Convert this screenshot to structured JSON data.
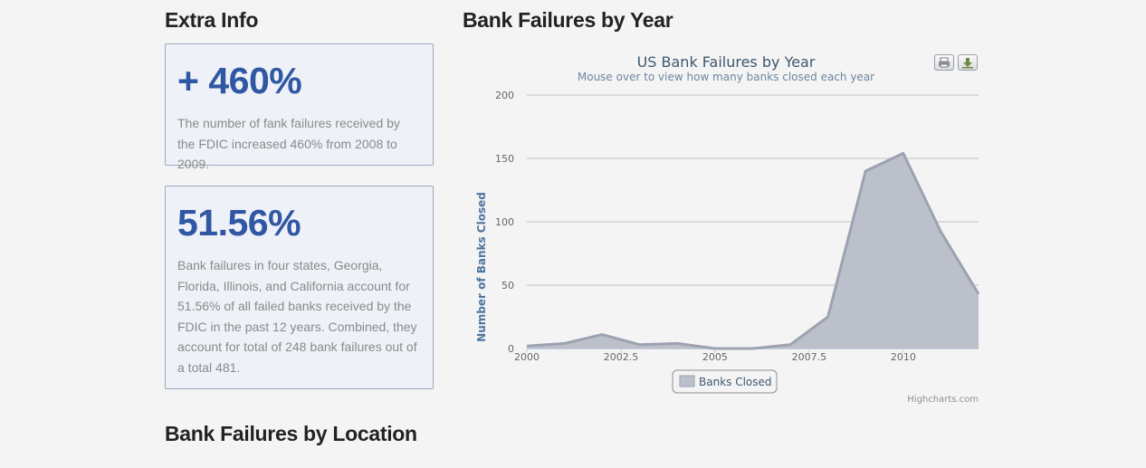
{
  "headings": {
    "extra_info": "Extra Info",
    "bank_failures_by_year": "Bank Failures by Year",
    "bank_failures_by_location": "Bank Failures by Location"
  },
  "info_cards": [
    {
      "stat": "+ 460%",
      "text": "The number of fank failures received by the FDIC increased 460% from 2008 to 2009."
    },
    {
      "stat": "51.56%",
      "text": "Bank failures in four states, Georgia, Florida, Illinois, and California account for 51.56% of all failed banks received by the FDIC in the past 12 years. Combined, they account for total of 248 bank failures out of a total 481."
    }
  ],
  "chart_data": {
    "type": "area",
    "title": "US Bank Failures by Year",
    "subtitle": "Mouse over to view how many banks closed each year",
    "ylabel": "Number of Banks Closed",
    "xlabel": "",
    "xlim": [
      2000,
      2012
    ],
    "ylim": [
      0,
      200
    ],
    "x_ticks": [
      "2000",
      "2002.5",
      "2005",
      "2007.5",
      "2010"
    ],
    "y_ticks": [
      "0",
      "50",
      "100",
      "150",
      "200"
    ],
    "grid": true,
    "legend_position": "bottom-center",
    "series": [
      {
        "name": "Banks Closed",
        "x": [
          2000,
          2001,
          2002,
          2003,
          2004,
          2005,
          2006,
          2007,
          2008,
          2009,
          2010,
          2011,
          2012
        ],
        "values": [
          2,
          4,
          11,
          3,
          4,
          0,
          0,
          3,
          25,
          140,
          154,
          92,
          43
        ]
      }
    ],
    "credits": "Highcharts.com",
    "colors": {
      "area_fill": "#bcc0cb",
      "line": "#9da2b1",
      "grid": "#c0c0c0",
      "title": "#3e576f",
      "subtitle": "#6d869f",
      "axis_title": "#4d759e"
    }
  },
  "toolbar": {
    "print_icon": "printer-icon",
    "export_icon": "download-icon"
  }
}
